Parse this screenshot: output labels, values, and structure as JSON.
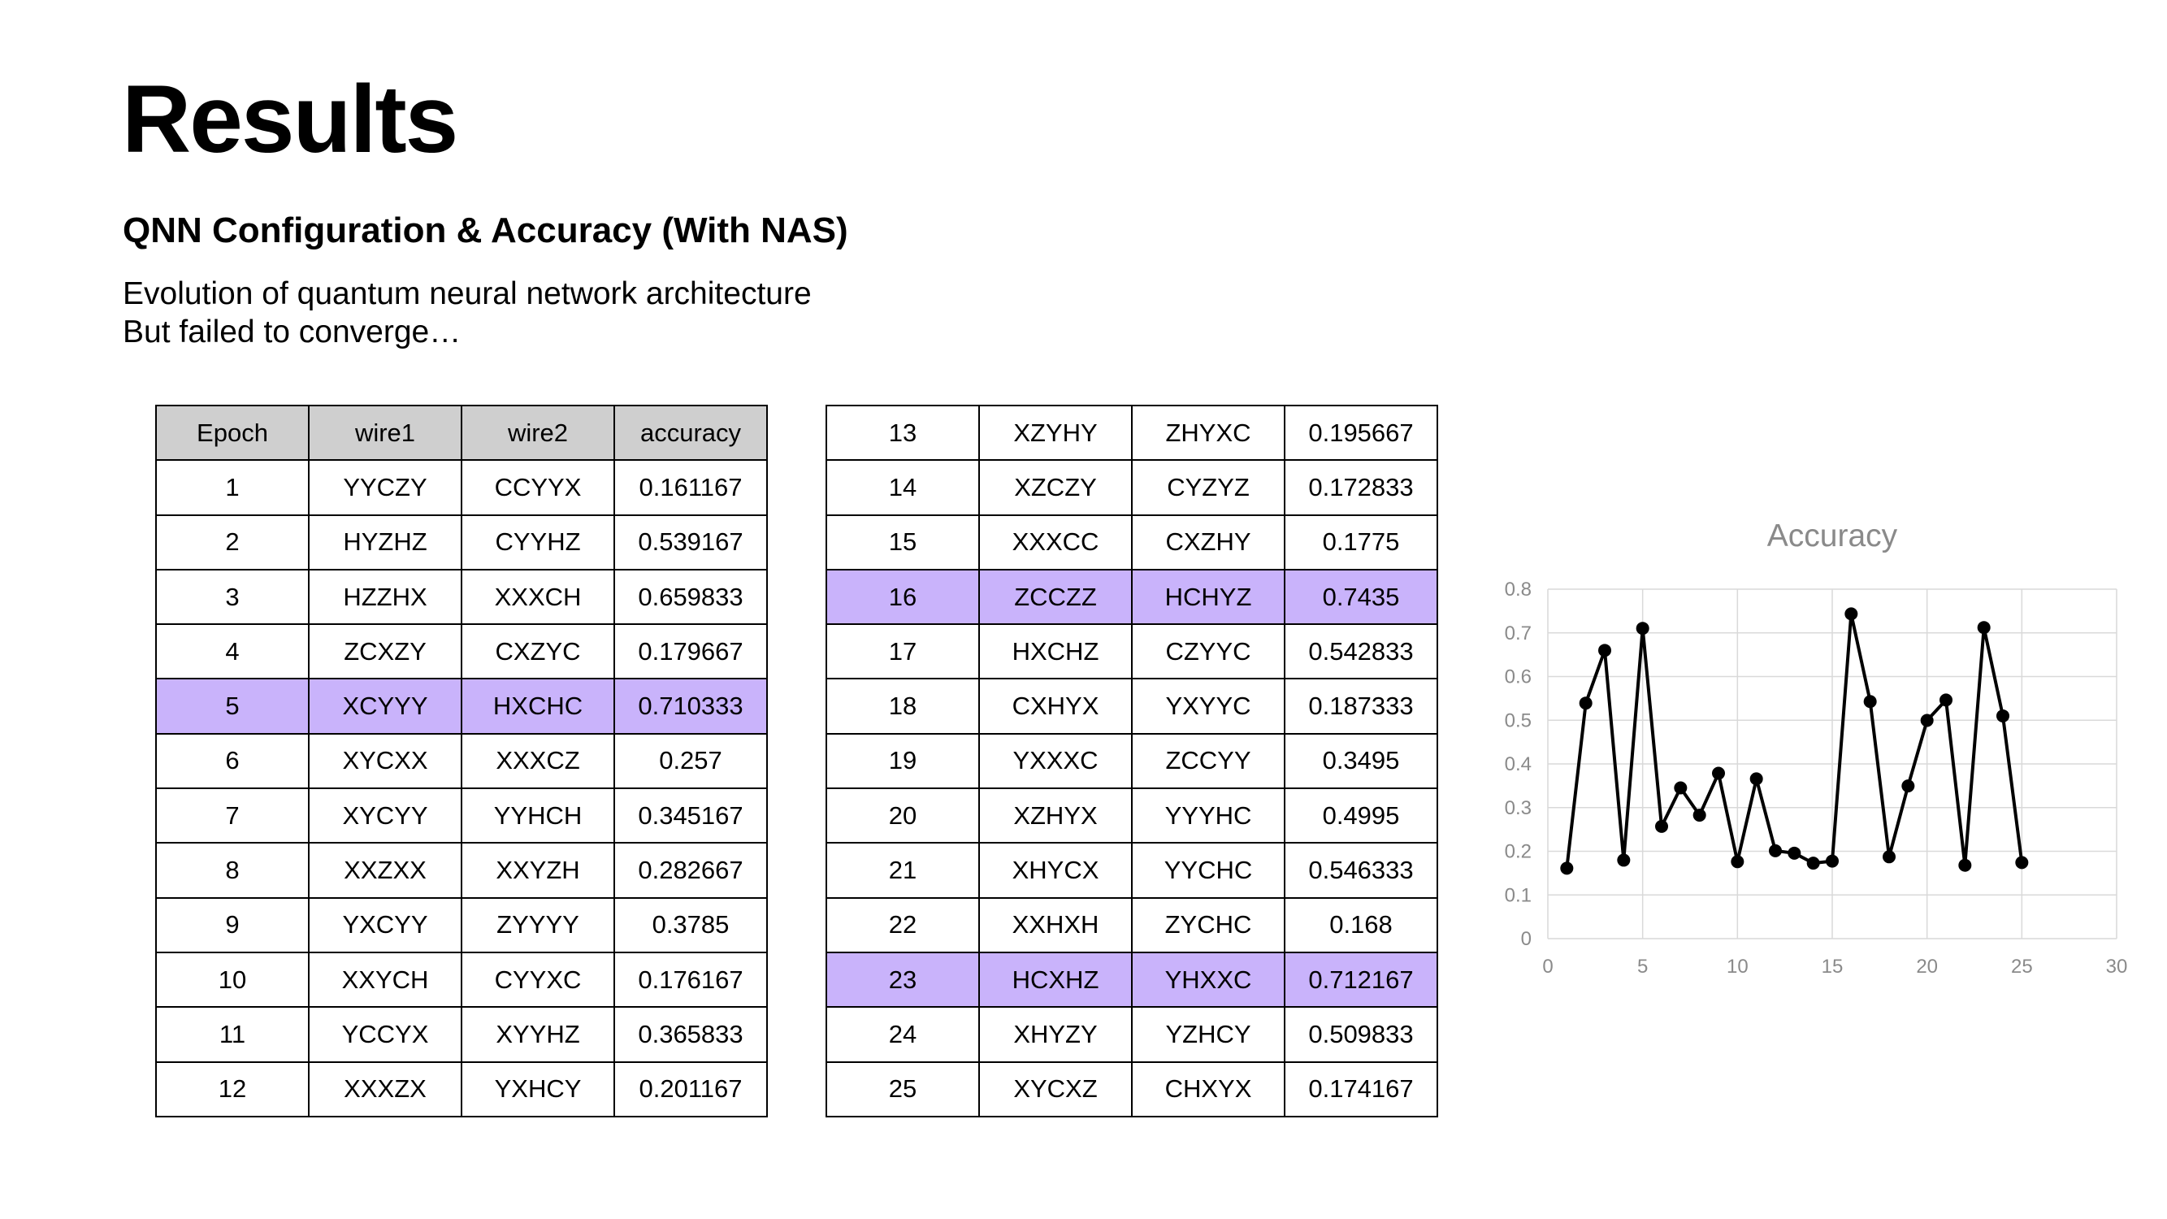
{
  "slide": {
    "title": "Results",
    "subtitle": "QNN Configuration & Accuracy (With NAS)",
    "description": [
      "Evolution of quantum neural network architecture",
      "But failed to converge…"
    ],
    "highlight_color": "#c9b3fb"
  },
  "table": {
    "headers": [
      "Epoch",
      "wire1",
      "wire2",
      "accuracy"
    ],
    "highlighted_epochs": [
      "5",
      "16",
      "23"
    ],
    "rows": [
      [
        "1",
        "YYCZY",
        "CCYYX",
        "0.161167"
      ],
      [
        "2",
        "HYZHZ",
        "CYYHZ",
        "0.539167"
      ],
      [
        "3",
        "HZZHX",
        "XXXCH",
        "0.659833"
      ],
      [
        "4",
        "ZCXZY",
        "CXZYC",
        "0.179667"
      ],
      [
        "5",
        "XCYYY",
        "HXCHC",
        "0.710333"
      ],
      [
        "6",
        "XYCXX",
        "XXXCZ",
        "0.257"
      ],
      [
        "7",
        "XYCYY",
        "YYHCH",
        "0.345167"
      ],
      [
        "8",
        "XXZXX",
        "XXYZH",
        "0.282667"
      ],
      [
        "9",
        "YXCYY",
        "ZYYYY",
        "0.3785"
      ],
      [
        "10",
        "XXYCH",
        "CYYXC",
        "0.176167"
      ],
      [
        "11",
        "YCCYX",
        "XYYHZ",
        "0.365833"
      ],
      [
        "12",
        "XXXZX",
        "YXHCY",
        "0.201167"
      ],
      [
        "13",
        "XZYHY",
        "ZHYXC",
        "0.195667"
      ],
      [
        "14",
        "XZCZY",
        "CYZYZ",
        "0.172833"
      ],
      [
        "15",
        "XXXCC",
        "CXZHY",
        "0.1775"
      ],
      [
        "16",
        "ZCCZZ",
        "HCHYZ",
        "0.7435"
      ],
      [
        "17",
        "HXCHZ",
        "CZYYC",
        "0.542833"
      ],
      [
        "18",
        "CXHYX",
        "YXYYC",
        "0.187333"
      ],
      [
        "19",
        "YXXXC",
        "ZCCYY",
        "0.3495"
      ],
      [
        "20",
        "XZHYX",
        "YYYHC",
        "0.4995"
      ],
      [
        "21",
        "XHYCX",
        "YYCHC",
        "0.546333"
      ],
      [
        "22",
        "XXHXH",
        "ZYCHC",
        "0.168"
      ],
      [
        "23",
        "HCXHZ",
        "YHXXC",
        "0.712167"
      ],
      [
        "24",
        "XHYZY",
        "YZHCY",
        "0.509833"
      ],
      [
        "25",
        "XYCXZ",
        "CHXYX",
        "0.174167"
      ]
    ]
  },
  "chart_data": {
    "type": "line",
    "title": "Accuracy",
    "xlabel": "",
    "ylabel": "",
    "xlim": [
      0,
      30
    ],
    "ylim": [
      0,
      0.8
    ],
    "xticks": [
      0,
      5,
      10,
      15,
      20,
      25,
      30
    ],
    "yticks": [
      0,
      0.1,
      0.2,
      0.3,
      0.4,
      0.5,
      0.6,
      0.7,
      0.8
    ],
    "grid": true,
    "legend": "none",
    "line_color": "#000000",
    "x": [
      1,
      2,
      3,
      4,
      5,
      6,
      7,
      8,
      9,
      10,
      11,
      12,
      13,
      14,
      15,
      16,
      17,
      18,
      19,
      20,
      21,
      22,
      23,
      24,
      25
    ],
    "y": [
      0.161167,
      0.539167,
      0.659833,
      0.179667,
      0.710333,
      0.257,
      0.345167,
      0.282667,
      0.3785,
      0.176167,
      0.365833,
      0.201167,
      0.195667,
      0.172833,
      0.1775,
      0.7435,
      0.542833,
      0.187333,
      0.3495,
      0.4995,
      0.546333,
      0.168,
      0.712167,
      0.509833,
      0.174167
    ]
  }
}
